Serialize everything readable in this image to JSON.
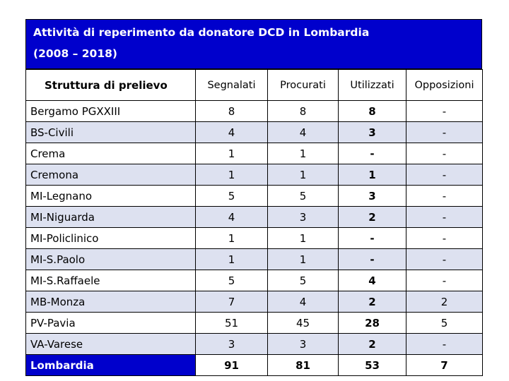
{
  "title": {
    "line1": "Attività di reperimento da donatore DCD  in Lombardia",
    "line2": "(2008 – 2018)"
  },
  "headers": [
    "Struttura di prelievo",
    "Segnalati",
    "Procurati",
    "Utilizzati",
    "Opposizioni"
  ],
  "rows": [
    [
      "Bergamo PGXXIII",
      "8",
      "8",
      "8",
      "-"
    ],
    [
      "BS-Civili",
      "4",
      "4",
      "3",
      "-"
    ],
    [
      "Crema",
      "1",
      "1",
      "-",
      "-"
    ],
    [
      "Cremona",
      "1",
      "1",
      "1",
      "-"
    ],
    [
      "MI-Legnano",
      "5",
      "5",
      "3",
      "-"
    ],
    [
      "MI-Niguarda",
      "4",
      "3",
      "2",
      "-"
    ],
    [
      "MI-Policlinico",
      "1",
      "1",
      "-",
      "-"
    ],
    [
      "MI-S.Paolo",
      "1",
      "1",
      "-",
      "-"
    ],
    [
      "MI-S.Raffaele",
      "5",
      "5",
      "4",
      "-"
    ],
    [
      "MB-Monza",
      "7",
      "4",
      "2",
      "2"
    ],
    [
      "PV-Pavia",
      "51",
      "45",
      "28",
      "5"
    ],
    [
      "VA-Varese",
      "3",
      "3",
      "2",
      "-"
    ]
  ],
  "total": [
    "Lombardia",
    "91",
    "81",
    "53",
    "7"
  ],
  "colors": {
    "title_bg": "#0000cc",
    "row_alt_bg": "#dde1f0",
    "total_label_bg": "#0000cc"
  }
}
